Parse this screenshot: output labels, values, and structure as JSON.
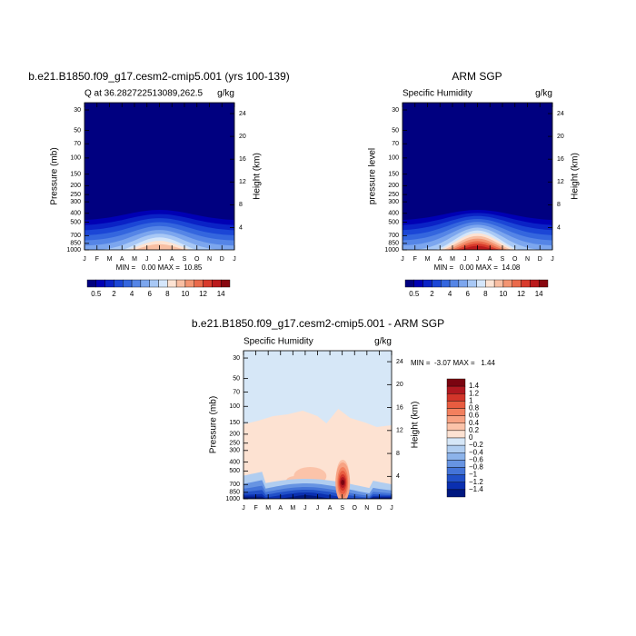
{
  "chart_data": [
    {
      "type": "contour",
      "title": "b.e21.B1850.f09_g17.cesm2-cmip5.001 (yrs 100-139)",
      "subtitle": "Q at 36.282722513089,262.5",
      "units": "g/kg",
      "ylabel": "Pressure (mb)",
      "y2label": "Height (km)",
      "log_y": true,
      "ylim": [
        1000,
        25
      ],
      "yticks": [
        30,
        50,
        70,
        100,
        150,
        200,
        250,
        300,
        400,
        500,
        700,
        850,
        1000
      ],
      "y2ticks": [
        4,
        8,
        12,
        16,
        20,
        24
      ],
      "categories": [
        "J",
        "F",
        "M",
        "A",
        "M",
        "J",
        "J",
        "A",
        "S",
        "O",
        "N",
        "D",
        "J"
      ],
      "stats": "MIN =   0.00 MAX =  10.85",
      "colorbar": {
        "orientation": "horizontal",
        "labels": [
          0.5,
          2,
          4,
          6,
          8,
          10,
          12,
          14
        ],
        "colors": [
          "#000080",
          "#0000b4",
          "#0a22c6",
          "#1b46d6",
          "#3466de",
          "#5585e6",
          "#7ca6ee",
          "#a8c8f5",
          "#d5e6fa",
          "#fde3d3",
          "#f8bea2",
          "#f39572",
          "#ea6a4b",
          "#d83b2c",
          "#ba1a1c",
          "#880810"
        ]
      }
    },
    {
      "type": "contour",
      "title": "ARM SGP",
      "subtitle": "Specific Humidity",
      "units": "g/kg",
      "ylabel": "pressure  level",
      "y2label": "Height (km)",
      "log_y": true,
      "ylim": [
        1000,
        25
      ],
      "yticks": [
        30,
        50,
        70,
        100,
        150,
        200,
        250,
        300,
        400,
        500,
        700,
        850,
        1000
      ],
      "y2ticks": [
        4,
        8,
        12,
        16,
        20,
        24
      ],
      "categories": [
        "J",
        "F",
        "M",
        "A",
        "M",
        "J",
        "J",
        "A",
        "S",
        "O",
        "N",
        "D",
        "J"
      ],
      "stats": "MIN =   0.00 MAX =  14.08",
      "colorbar": {
        "orientation": "horizontal",
        "labels": [
          0.5,
          2,
          4,
          6,
          8,
          10,
          12,
          14
        ],
        "colors": [
          "#000080",
          "#0000b4",
          "#0a22c6",
          "#1b46d6",
          "#3466de",
          "#5585e6",
          "#7ca6ee",
          "#a8c8f5",
          "#d5e6fa",
          "#fde3d3",
          "#f8bea2",
          "#f39572",
          "#ea6a4b",
          "#d83b2c",
          "#ba1a1c",
          "#880810"
        ]
      }
    },
    {
      "type": "difference",
      "title": "b.e21.B1850.f09_g17.cesm2-cmip5.001 - ARM SGP",
      "subtitle": "Specific Humidity",
      "units": "g/kg",
      "ylabel": "Pressure (mb)",
      "y2label": "Height (km)",
      "log_y": true,
      "ylim": [
        1000,
        25
      ],
      "yticks": [
        30,
        50,
        70,
        100,
        150,
        200,
        250,
        300,
        400,
        500,
        700,
        850,
        1000
      ],
      "y2ticks": [
        4,
        8,
        12,
        16,
        20,
        24
      ],
      "categories": [
        "J",
        "F",
        "M",
        "A",
        "M",
        "J",
        "J",
        "A",
        "S",
        "O",
        "N",
        "D",
        "J"
      ],
      "stats": "MIN =  -3.07 MAX =   1.44",
      "colorbar": {
        "orientation": "vertical",
        "labels": [
          1.4,
          1.2,
          1,
          0.8,
          0.6,
          0.4,
          0.2,
          0,
          {
            "value": -0.2,
            "label": "−0.2"
          },
          {
            "value": -0.4,
            "label": "−0.4"
          },
          {
            "value": -0.6,
            "label": "−0.6"
          },
          {
            "value": -0.8,
            "label": "−0.8"
          },
          {
            "value": -1,
            "label": "−1"
          },
          {
            "value": -1.2,
            "label": "−1.2"
          },
          {
            "value": -1.4,
            "label": "−1.4"
          }
        ],
        "colors": [
          "#7a0410",
          "#b01820",
          "#d2352a",
          "#e85c40",
          "#f2805e",
          "#f7a283",
          "#fbc3a9",
          "#fde2d2",
          "#d6e7f7",
          "#b0cdf0",
          "#8cb3ea",
          "#6794e2",
          "#4474d8",
          "#2150c8",
          "#0a2fb0",
          "#001880"
        ]
      }
    }
  ]
}
